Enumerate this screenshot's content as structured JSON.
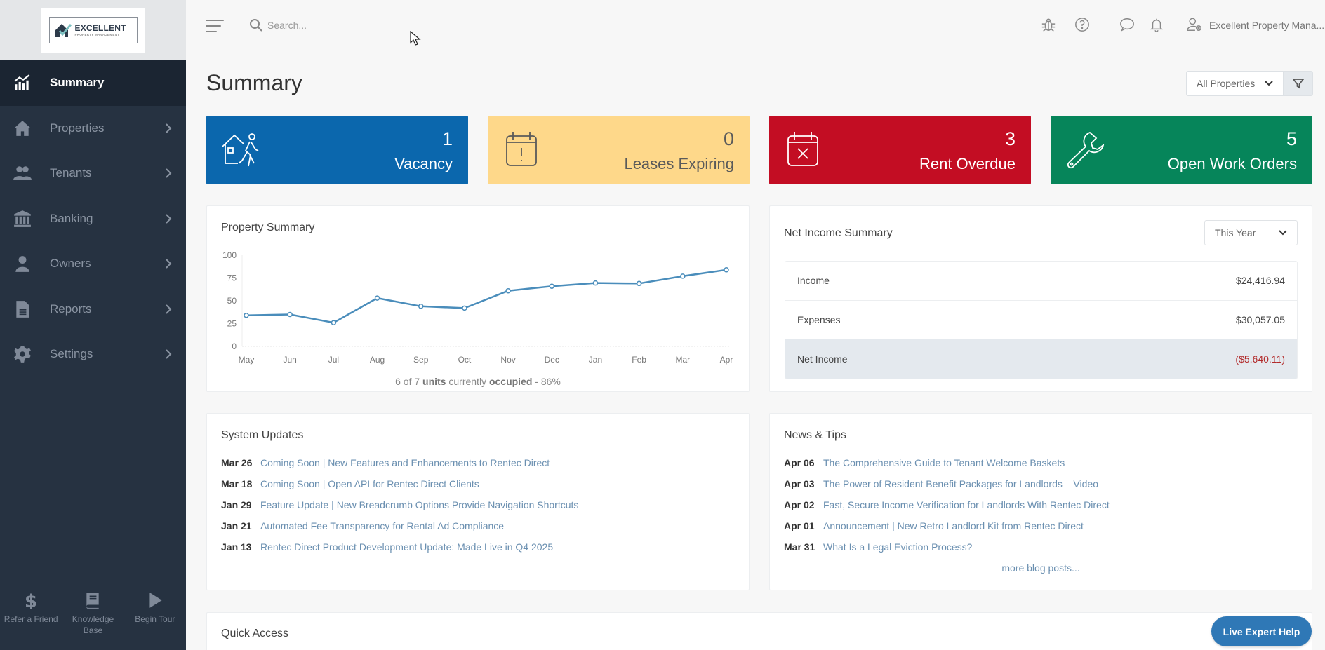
{
  "brand": {
    "logo_title": "EXCELLENT",
    "logo_subtitle": "PROPERTY MANAGEMENT"
  },
  "sidebar": {
    "items": [
      {
        "label": "Summary",
        "icon": "chart-icon",
        "active": true
      },
      {
        "label": "Properties",
        "icon": "home-icon"
      },
      {
        "label": "Tenants",
        "icon": "users-icon"
      },
      {
        "label": "Banking",
        "icon": "bank-icon"
      },
      {
        "label": "Owners",
        "icon": "owner-icon"
      },
      {
        "label": "Reports",
        "icon": "document-icon"
      },
      {
        "label": "Settings",
        "icon": "gear-icon"
      }
    ],
    "footer": [
      {
        "label": "Refer a Friend",
        "icon": "dollar-icon"
      },
      {
        "label": "Knowledge Base",
        "icon": "book-icon"
      },
      {
        "label": "Begin Tour",
        "icon": "play-icon"
      }
    ]
  },
  "header": {
    "search_placeholder": "Search...",
    "user_name": "Excellent Property Mana..."
  },
  "page": {
    "title": "Summary",
    "property_filter": "All Properties"
  },
  "cards": [
    {
      "value": "1",
      "label": "Vacancy",
      "color": "#0b67ad"
    },
    {
      "value": "0",
      "label": "Leases Expiring",
      "color": "#fed88a"
    },
    {
      "value": "3",
      "label": "Rent Overdue",
      "color": "#c30d23"
    },
    {
      "value": "5",
      "label": "Open Work Orders",
      "color": "#06855a"
    }
  ],
  "property_summary": {
    "title": "Property Summary",
    "occupancy": {
      "prefix": "6 of 7 ",
      "units": "units",
      "mid": " currently ",
      "occupied": "occupied",
      "suffix": " - 86%"
    }
  },
  "chart_data": {
    "type": "line",
    "title": "Property Summary",
    "categories": [
      "May",
      "Jun",
      "Jul",
      "Aug",
      "Sep",
      "Oct",
      "Nov",
      "Dec",
      "Jan",
      "Feb",
      "Mar",
      "Apr"
    ],
    "values": [
      34,
      35,
      26,
      53,
      44,
      42,
      61,
      66,
      69.5,
      69,
      77,
      84
    ],
    "yticks": [
      0,
      25,
      50,
      75,
      100
    ],
    "ylim": [
      0,
      100
    ],
    "xlabel": "",
    "ylabel": "",
    "color": "#4a8dbb"
  },
  "net_income": {
    "title": "Net Income Summary",
    "period": "This Year",
    "rows": [
      {
        "label": "Income",
        "value": "$24,416.94"
      },
      {
        "label": "Expenses",
        "value": "$30,057.05"
      },
      {
        "label": "Net Income",
        "value": "($5,640.11)"
      }
    ]
  },
  "system_updates": {
    "title": "System Updates",
    "items": [
      {
        "date": "Mar 26",
        "text": "Coming Soon | New Features and Enhancements to Rentec Direct"
      },
      {
        "date": "Mar 18",
        "text": "Coming Soon | Open API for Rentec Direct Clients"
      },
      {
        "date": "Jan 29",
        "text": "Feature Update | New Breadcrumb Options Provide Navigation Shortcuts"
      },
      {
        "date": "Jan 21",
        "text": "Automated Fee Transparency for Rental Ad Compliance"
      },
      {
        "date": "Jan 13",
        "text": "Rentec Direct Product Development Update: Made Live in Q4 2025"
      }
    ]
  },
  "news": {
    "title": "News & Tips",
    "items": [
      {
        "date": "Apr 06",
        "text": "The Comprehensive Guide to Tenant Welcome Baskets"
      },
      {
        "date": "Apr 03",
        "text": "The Power of Resident Benefit Packages for Landlords – Video"
      },
      {
        "date": "Apr 02",
        "text": "Fast, Secure Income Verification for Landlords With Rentec Direct"
      },
      {
        "date": "Apr 01",
        "text": "Announcement | New Retro Landlord Kit from Rentec Direct"
      },
      {
        "date": "Mar 31",
        "text": "What Is a Legal Eviction Process?"
      }
    ],
    "more": "more blog posts..."
  },
  "quick_access": {
    "title": "Quick Access"
  },
  "live_help": "Live Expert Help"
}
